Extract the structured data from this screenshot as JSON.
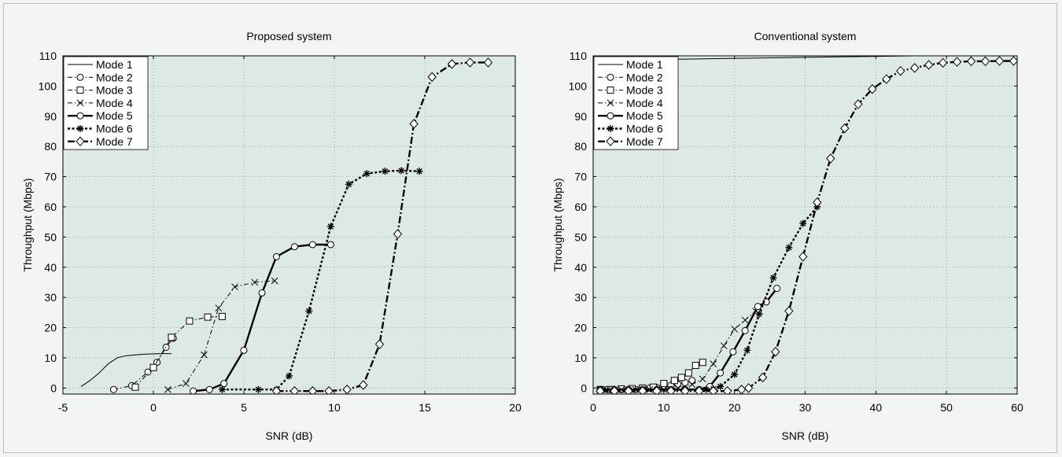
{
  "colors": {
    "plot_bg": "#dde9e6",
    "grid": "#a9b4b1",
    "line": "#000000",
    "frame": "#f3f4f4"
  },
  "chart_data": [
    {
      "type": "line",
      "title": "Proposed system",
      "xlabel": "SNR (dB)",
      "ylabel": "Throughput (Mbps)",
      "xlim": [
        -5,
        20
      ],
      "ylim": [
        -2,
        110
      ],
      "xticks": [
        -5,
        0,
        5,
        10,
        15,
        20
      ],
      "yticks": [
        0,
        10,
        20,
        30,
        40,
        50,
        60,
        70,
        80,
        90,
        100,
        110
      ],
      "grid": true,
      "legend_position": "top-left",
      "series": [
        {
          "name": "Mode 1",
          "style": "solid-thin",
          "marker": "none",
          "x": [
            -4,
            -3.5,
            -3,
            -2.5,
            -2,
            -1.5,
            -1,
            -0.5,
            0,
            0.5,
            1
          ],
          "y": [
            0.5,
            2.5,
            5,
            8,
            10,
            10.7,
            11,
            11.2,
            11.3,
            11.4,
            11.4
          ]
        },
        {
          "name": "Mode 2",
          "style": "dashdot-thin",
          "marker": "circle",
          "x": [
            -2.2,
            -1.2,
            -0.3,
            0.2,
            0.7,
            1.1
          ],
          "y": [
            -0.5,
            0.8,
            5.3,
            8.5,
            13.5,
            16.5
          ]
        },
        {
          "name": "Mode 3",
          "style": "dashdot-thin",
          "marker": "square",
          "x": [
            -1,
            0,
            1,
            2,
            3,
            3.8
          ],
          "y": [
            0.3,
            6.8,
            16.8,
            22.2,
            23.5,
            23.7
          ]
        },
        {
          "name": "Mode 4",
          "style": "dashdot-thin",
          "marker": "x",
          "x": [
            0.8,
            1.8,
            2.8,
            3.6,
            4.5,
            5.6,
            6.7
          ],
          "y": [
            -0.5,
            1.5,
            11,
            26.5,
            33.5,
            35,
            35.5
          ]
        },
        {
          "name": "Mode 5",
          "style": "solid-thick",
          "marker": "circle",
          "x": [
            2.2,
            3.1,
            3.9,
            5.0,
            6.0,
            6.8,
            7.8,
            8.8,
            9.8
          ],
          "y": [
            -1,
            -0.5,
            1.5,
            12.5,
            31.5,
            43.5,
            46.8,
            47.5,
            47.5
          ]
        },
        {
          "name": "Mode 6",
          "style": "dotted-thick",
          "marker": "asterisk",
          "x": [
            3.8,
            5.8,
            6.8,
            7.5,
            8.6,
            9.8,
            10.8,
            11.8,
            12.8,
            13.7,
            14.7
          ],
          "y": [
            -0.5,
            -0.5,
            -0.5,
            4,
            25.5,
            53.5,
            67.5,
            71,
            71.8,
            72,
            71.8
          ]
        },
        {
          "name": "Mode 7",
          "style": "dashdot-thick",
          "marker": "diamond",
          "x": [
            6.8,
            7.8,
            8.8,
            9.7,
            10.7,
            11.6,
            12.5,
            13.5,
            14.4,
            15.4,
            16.5,
            17.5,
            18.5
          ],
          "y": [
            -1,
            -1,
            -1,
            -1,
            -0.5,
            1,
            14.5,
            51,
            87.5,
            103,
            107.3,
            107.8,
            107.8
          ]
        }
      ]
    },
    {
      "type": "line",
      "title": "Conventional system",
      "xlabel": "SNR (dB)",
      "ylabel": "Throughput (Mbps)",
      "xlim": [
        0,
        60
      ],
      "ylim": [
        -2,
        110
      ],
      "xticks": [
        0,
        10,
        20,
        30,
        40,
        50,
        60
      ],
      "yticks": [
        0,
        10,
        20,
        30,
        40,
        50,
        60,
        70,
        80,
        90,
        100,
        110
      ],
      "grid": true,
      "legend_position": "top-left",
      "series": [
        {
          "name": "Mode 1",
          "style": "solid-thin",
          "marker": "none",
          "x": [
            0,
            60
          ],
          "y": [
            108.5,
            110.5
          ]
        },
        {
          "name": "Mode 2",
          "style": "dashdot-thin",
          "marker": "circle",
          "x": [
            1,
            2,
            3,
            4,
            5,
            6,
            7,
            8,
            9,
            10,
            11,
            12,
            13,
            14
          ],
          "y": [
            -0.5,
            -0.5,
            -0.5,
            -0.5,
            -0.5,
            -0.5,
            -0.3,
            0,
            0.2,
            0.5,
            0.8,
            1.2,
            1.8,
            2.5
          ]
        },
        {
          "name": "Mode 3",
          "style": "dashdot-thin",
          "marker": "square",
          "x": [
            1,
            2.5,
            4,
            5.5,
            7,
            8.5,
            10,
            11.5,
            12.5,
            13.5,
            14.5,
            15.5
          ],
          "y": [
            -0.5,
            -0.5,
            -0.3,
            -0.2,
            0,
            0.3,
            1.5,
            2.5,
            3.5,
            5,
            7.5,
            8.5
          ]
        },
        {
          "name": "Mode 4",
          "style": "dashdot-thin",
          "marker": "x",
          "x": [
            2,
            4,
            6,
            8,
            10,
            12,
            14,
            15.5,
            17,
            18.5,
            20,
            21.5,
            23
          ],
          "y": [
            -0.5,
            -0.5,
            -0.5,
            -0.5,
            -0.5,
            0,
            1.2,
            3,
            8,
            14,
            19.5,
            22.5,
            25.5
          ]
        },
        {
          "name": "Mode 5",
          "style": "solid-thick",
          "marker": "circle",
          "x": [
            1,
            3,
            5,
            7,
            9,
            11,
            13,
            15,
            16.5,
            18,
            19.8,
            21.5,
            23.3,
            24.5,
            26
          ],
          "y": [
            -0.5,
            -0.5,
            -0.5,
            -0.5,
            -0.5,
            -0.5,
            -0.5,
            -0.5,
            0.5,
            5,
            12,
            19,
            27,
            28.5,
            33
          ]
        },
        {
          "name": "Mode 6",
          "style": "dotted-thick",
          "marker": "asterisk",
          "x": [
            1,
            3,
            5,
            7,
            9,
            11,
            13,
            15,
            16,
            17,
            18,
            20,
            21.8,
            23.5,
            25.5,
            27.7,
            29.7,
            31.7
          ],
          "y": [
            -0.5,
            -0.5,
            -0.5,
            -0.5,
            -0.5,
            -0.5,
            -0.5,
            -0.5,
            -0.5,
            -0.3,
            0.5,
            4.5,
            12.5,
            24.5,
            36.5,
            46.5,
            54.5,
            60
          ]
        },
        {
          "name": "Mode 7",
          "style": "dashdot-thick",
          "marker": "diamond",
          "x": [
            1,
            3,
            5,
            7,
            9,
            11,
            13,
            15,
            17,
            19,
            21,
            22,
            24,
            25.8,
            27.7,
            29.7,
            31.7,
            33.6,
            35.6,
            37.5,
            39.5,
            41.5,
            43.5,
            45.5,
            47.5,
            49.5,
            51.5,
            53.5,
            55.5,
            57.5,
            59.5
          ],
          "y": [
            -1,
            -1,
            -1,
            -1,
            -1,
            -1,
            -1,
            -1,
            -1,
            -1,
            -0.5,
            0,
            3.5,
            12,
            25.5,
            43.5,
            61.5,
            76,
            86,
            94,
            99,
            102.3,
            105,
            106,
            107,
            107.7,
            108,
            108.2,
            108.2,
            108.3,
            108.3
          ]
        }
      ]
    }
  ]
}
